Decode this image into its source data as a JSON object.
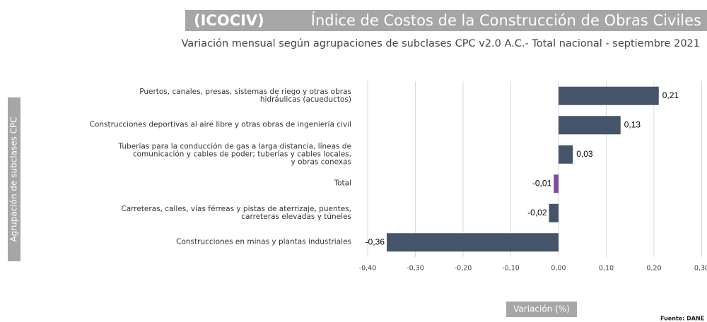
{
  "chart_data": {
    "type": "barh",
    "title_abbr": "(ICOCIV)",
    "title": "Índice de Costos de la Construcción de Obras Civiles",
    "subtitle": "Variación mensual  según agrupaciones de subclases CPC v2.0 A.C.- Total nacional - septiembre 2021",
    "ylabel": "Agrupación de subclases CPC",
    "xlabel": "Variación (%)",
    "source": "Fuente: DANE",
    "categories": [
      "Puertos, canales, presas, sistemas de riego y otras obras\nhidráulicas (acueductos)",
      "Construcciones deportivas al aire libre y otras obras de ingeniería civil",
      "Tuberías para la conducción de gas a larga distancia, líneas de\ncomunicación y cables de poder; tuberías y cables locales,\ny obras conexas",
      "Total",
      "Carreteras, calles, vías férreas y pistas de aterrizaje, puentes,\ncarreteras elevadas y túneles",
      "Construcciones  en minas y plantas industriales"
    ],
    "values": [
      0.21,
      0.13,
      0.03,
      -0.01,
      -0.02,
      -0.36
    ],
    "value_labels": [
      "0,21",
      "0,13",
      "0,03",
      "-0,01",
      "-0,02",
      "-0,36"
    ],
    "colors": [
      "#44546a",
      "#44546a",
      "#44546a",
      "#7b4f9c",
      "#44546a",
      "#44546a"
    ],
    "xlim": [
      -0.4,
      0.3
    ],
    "xticks": [
      {
        "value": -0.4,
        "label": "-0,40"
      },
      {
        "value": -0.3,
        "label": "-0,30"
      },
      {
        "value": -0.2,
        "label": "-0,20"
      },
      {
        "value": -0.1,
        "label": "-0,10"
      },
      {
        "value": 0,
        "label": "0,00"
      },
      {
        "value": 0.1,
        "label": "0,10"
      },
      {
        "value": 0.2,
        "label": "0,20"
      },
      {
        "value": 0.3,
        "label": "0,30"
      }
    ],
    "grid": true
  }
}
